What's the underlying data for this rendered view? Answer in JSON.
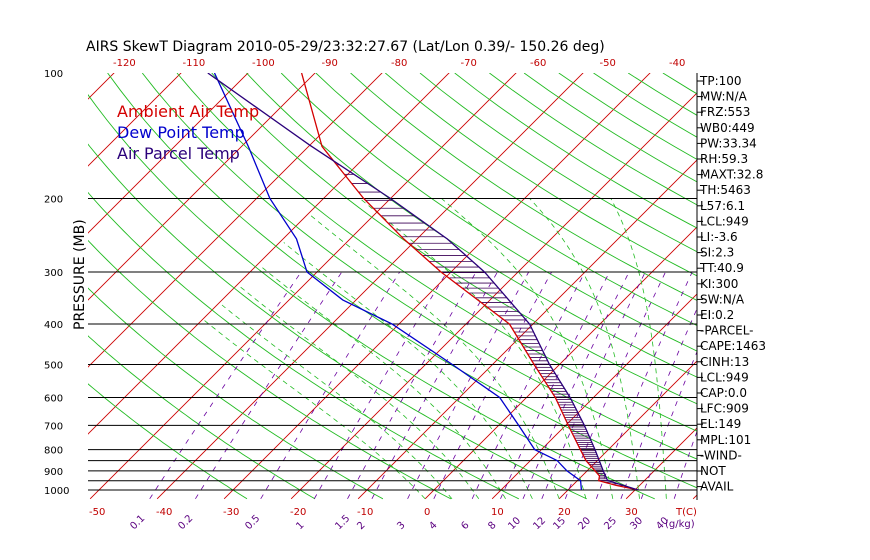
{
  "title": "AIRS SkewT Diagram 2010-05-29/23:32:27.67 (Lat/Lon 0.39/- 150.26 deg)",
  "colors": {
    "ambient": "#d40000",
    "dewpoint": "#0000cc",
    "parcel": "#2a007a",
    "isotherm": "#cc0000",
    "dry_adiabat": "#22bb22",
    "moist_adiabat": "#22bb22",
    "mixing": "#6a00a0",
    "isobar": "#000000",
    "hatch": "#3a0055"
  },
  "legend": [
    {
      "label": "Ambient Air Temp",
      "color": "#d40000"
    },
    {
      "label": "Dew Point Temp",
      "color": "#0000cc"
    },
    {
      "label": "Air Parcel Temp",
      "color": "#2a007a"
    }
  ],
  "yaxis_title": "PRESSURE (MB)",
  "xaxis_unit_label": "T(C)",
  "mixing_unit_label": "(g/kg)",
  "indices": [
    "TP:100",
    "MW:N/A",
    "FRZ:553",
    "WB0:449",
    "PW:33.34",
    "RH:59.3",
    "MAXT:32.8",
    "TH:5463",
    "L57:6.1",
    "LCL:949",
    "LI:-3.6",
    "SI:2.3",
    "TT:40.9",
    "KI:300",
    "SW:N/A",
    "EI:0.2",
    "-PARCEL-",
    "CAPE:1463",
    "CINH:13",
    "LCL:949",
    "CAP:0.0",
    "LFC:909",
    "EL:149",
    "MPL:101",
    "-WIND-",
    "NOT",
    "AVAIL"
  ],
  "chart_data": {
    "type": "line",
    "title": "AIRS SkewT Diagram 2010-05-29/23:32:27.67 (Lat/Lon 0.39/- 150.26 deg)",
    "ylabel": "PRESSURE (MB)",
    "xlabel": "T(C)",
    "pressure_ticks": [
      100,
      200,
      300,
      400,
      500,
      600,
      700,
      800,
      900,
      1000
    ],
    "isobars": [
      1000,
      950,
      900,
      850,
      800,
      700,
      600,
      500,
      400,
      300,
      200
    ],
    "bottom_temp_ticks": [
      "-50",
      "-40",
      "-30",
      "-20",
      "-10",
      "0",
      "10",
      "20",
      "30"
    ],
    "top_temp_ticks": [
      "-120",
      "-110",
      "-100",
      "-90",
      "-80",
      "-70",
      "-60",
      "-50",
      "-40"
    ],
    "mixing_ratio_ticks": [
      "0.1",
      "0.2",
      "0.5",
      "1",
      "1.5",
      "2",
      "3",
      "4",
      "6",
      "8",
      "10",
      "12",
      "15",
      "20",
      "25",
      "30",
      "40"
    ],
    "series": [
      {
        "name": "Ambient Air Temp",
        "points": [
          {
            "p": 1000,
            "t": 30.5
          },
          {
            "p": 975,
            "t": 26.5
          },
          {
            "p": 950,
            "t": 23.2
          },
          {
            "p": 925,
            "t": 22.6
          },
          {
            "p": 900,
            "t": 21.2
          },
          {
            "p": 850,
            "t": 18.3
          },
          {
            "p": 800,
            "t": 15.8
          },
          {
            "p": 700,
            "t": 10.4
          },
          {
            "p": 600,
            "t": 4.3
          },
          {
            "p": 500,
            "t": -3.8
          },
          {
            "p": 400,
            "t": -13.5
          },
          {
            "p": 300,
            "t": -31.5
          },
          {
            "p": 250,
            "t": -42.0
          },
          {
            "p": 200,
            "t": -54.0
          },
          {
            "p": 150,
            "t": -68.0
          },
          {
            "p": 100,
            "t": -82.0
          }
        ]
      },
      {
        "name": "Dew Point Temp",
        "points": [
          {
            "p": 1000,
            "t": 22.0
          },
          {
            "p": 950,
            "t": 20.5
          },
          {
            "p": 900,
            "t": 17.0
          },
          {
            "p": 850,
            "t": 14.0
          },
          {
            "p": 800,
            "t": 9.0
          },
          {
            "p": 700,
            "t": 3.0
          },
          {
            "p": 600,
            "t": -4.0
          },
          {
            "p": 500,
            "t": -16.0
          },
          {
            "p": 400,
            "t": -31.0
          },
          {
            "p": 350,
            "t": -42.0
          },
          {
            "p": 300,
            "t": -51.5
          },
          {
            "p": 250,
            "t": -58.0
          },
          {
            "p": 200,
            "t": -68.0
          },
          {
            "p": 150,
            "t": -79.0
          },
          {
            "p": 100,
            "t": -95.0
          }
        ]
      },
      {
        "name": "Air Parcel Temp",
        "points": [
          {
            "p": 1000,
            "t": 30.5
          },
          {
            "p": 949,
            "t": 24.5
          },
          {
            "p": 909,
            "t": 22.8
          },
          {
            "p": 800,
            "t": 18.0
          },
          {
            "p": 700,
            "t": 12.8
          },
          {
            "p": 600,
            "t": 6.5
          },
          {
            "p": 500,
            "t": -1.5
          },
          {
            "p": 400,
            "t": -10.5
          },
          {
            "p": 300,
            "t": -25.0
          },
          {
            "p": 250,
            "t": -35.5
          },
          {
            "p": 200,
            "t": -50.0
          },
          {
            "p": 149,
            "t": -70.0
          },
          {
            "p": 100,
            "t": -96.0
          }
        ]
      }
    ]
  }
}
